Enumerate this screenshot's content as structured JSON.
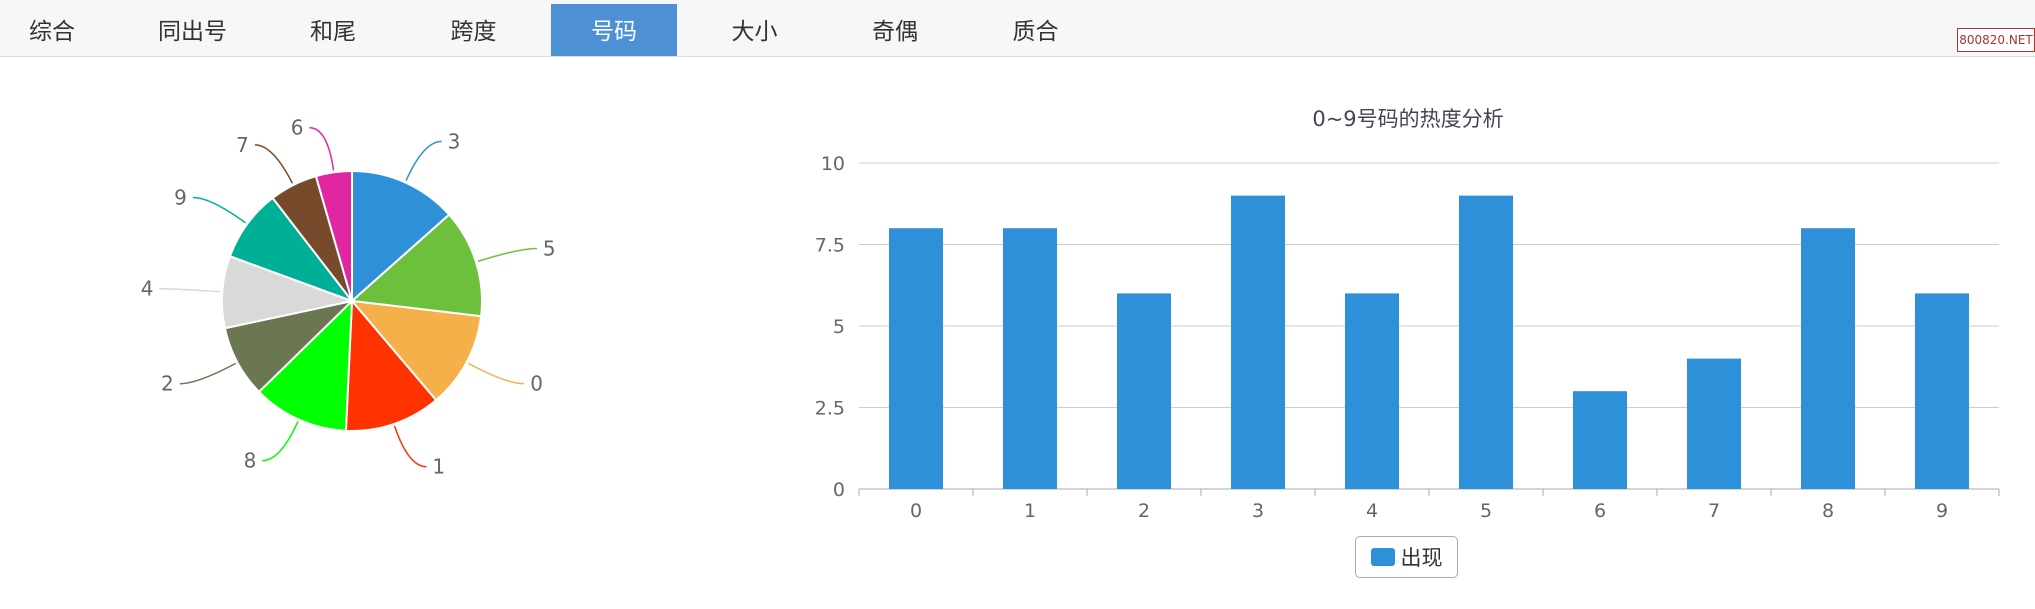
{
  "tabs": [
    "综合",
    "同出号",
    "和尾",
    "跨度",
    "号码",
    "大小",
    "奇偶",
    "质合"
  ],
  "active_tab": 4,
  "watermark": "800820.NET",
  "chart_data": [
    {
      "type": "pie",
      "labels": [
        "3",
        "5",
        "0",
        "1",
        "8",
        "2",
        "4",
        "9",
        "7",
        "6"
      ],
      "values": [
        9,
        9,
        8,
        8,
        8,
        6,
        6,
        6,
        4,
        3
      ],
      "colors": [
        "#2e90d9",
        "#6cc03c",
        "#f5b04a",
        "#ff3300",
        "#00ff00",
        "#6b7653",
        "#d9d9d9",
        "#00b096",
        "#764a2a",
        "#e026a0"
      ]
    },
    {
      "type": "bar",
      "title": "0~9号码的热度分析",
      "categories": [
        "0",
        "1",
        "2",
        "3",
        "4",
        "5",
        "6",
        "7",
        "8",
        "9"
      ],
      "series": [
        {
          "name": "出现",
          "values": [
            8,
            8,
            6,
            9,
            6,
            9,
            3,
            4,
            8,
            6
          ],
          "color": "#2e90d9"
        }
      ],
      "ylim": [
        0,
        10
      ],
      "yticks": [
        "0",
        "2.5",
        "5",
        "7.5",
        "10"
      ],
      "grid": true,
      "legend": "bottom"
    }
  ]
}
